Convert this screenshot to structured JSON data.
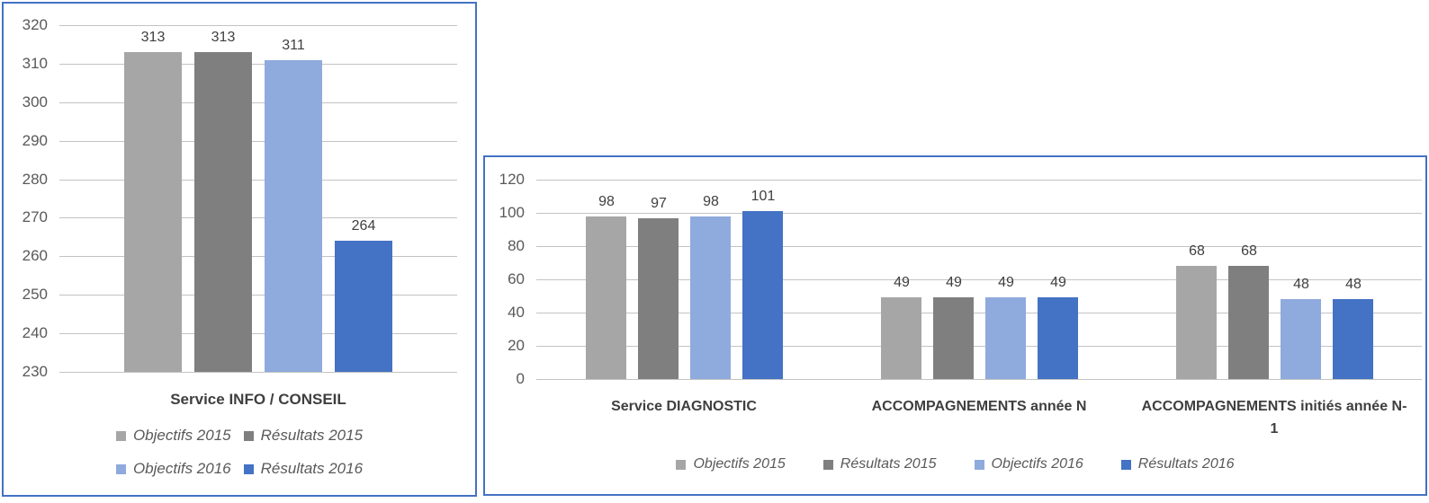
{
  "colors": {
    "series": [
      "#a6a6a6",
      "#7f7f7f",
      "#8faadc",
      "#4472c4"
    ],
    "panel_border": "#4472c4",
    "gridline": "#c3c3c3",
    "axis_tick_label": "#595959",
    "data_label": "#3f3f3f",
    "category_label": "#3f3f3f",
    "legend_label": "#595959",
    "background": "#ffffff"
  },
  "legend": {
    "items": [
      {
        "label": "Objectifs 2015",
        "color": "#a6a6a6"
      },
      {
        "label": "Résultats 2015",
        "color": "#7f7f7f"
      },
      {
        "label": "Objectifs 2016",
        "color": "#8faadc"
      },
      {
        "label": "Résultats 2016",
        "color": "#4472c4"
      }
    ]
  },
  "chart_data": [
    {
      "type": "bar",
      "title": "",
      "categories": [
        "Service INFO / CONSEIL"
      ],
      "series": [
        {
          "name": "Objectifs 2015",
          "values": [
            313
          ]
        },
        {
          "name": "Résultats 2015",
          "values": [
            313
          ]
        },
        {
          "name": "Objectifs 2016",
          "values": [
            311
          ]
        },
        {
          "name": "Résultats 2016",
          "values": [
            264
          ]
        }
      ],
      "ylim": [
        230,
        320
      ],
      "ytick_step": 10,
      "grid": true,
      "data_labels": true,
      "legend_position": "bottom",
      "legend_rows": [
        [
          0,
          1
        ],
        [
          2,
          3
        ]
      ]
    },
    {
      "type": "bar",
      "title": "",
      "categories": [
        "Service DIAGNOSTIC",
        "ACCOMPAGNEMENTS année N",
        "ACCOMPAGNEMENTS initiés année N-1"
      ],
      "series": [
        {
          "name": "Objectifs 2015",
          "values": [
            98,
            49,
            68
          ]
        },
        {
          "name": "Résultats 2015",
          "values": [
            97,
            49,
            68
          ]
        },
        {
          "name": "Objectifs 2016",
          "values": [
            98,
            49,
            48
          ]
        },
        {
          "name": "Résultats 2016",
          "values": [
            101,
            49,
            48
          ]
        }
      ],
      "ylim": [
        0,
        120
      ],
      "ytick_step": 20,
      "grid": true,
      "data_labels": true,
      "legend_position": "bottom",
      "legend_rows": [
        [
          0,
          1,
          2,
          3
        ]
      ]
    }
  ]
}
